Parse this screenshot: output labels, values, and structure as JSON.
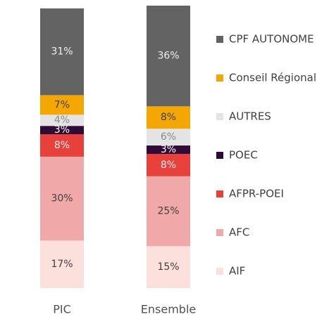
{
  "chart_data": {
    "type": "stacked_bar",
    "categories": [
      "PIC",
      "Ensemble"
    ],
    "series": [
      {
        "name": "CPF AUTONOME",
        "color": "#636363",
        "values": [
          31,
          36
        ],
        "value_labels": [
          "31%",
          "36%"
        ]
      },
      {
        "name": "Conseil Régional",
        "color": "#f4a700",
        "values": [
          7,
          8
        ],
        "value_labels": [
          "7%",
          "8%"
        ]
      },
      {
        "name": "AUTRES",
        "color": "#e4e4e4",
        "values": [
          4,
          6
        ],
        "value_labels": [
          "4%",
          "6%"
        ]
      },
      {
        "name": "POEC",
        "color": "#2f0b36",
        "values": [
          3,
          3
        ],
        "value_labels": [
          "3%",
          "3%"
        ]
      },
      {
        "name": "AFPR-POEI",
        "color": "#e8413c",
        "values": [
          8,
          8
        ],
        "value_labels": [
          "8%",
          "8%"
        ]
      },
      {
        "name": "AFC",
        "color": "#f0a9a8",
        "values": [
          30,
          25
        ],
        "value_labels": [
          "30%",
          "25%"
        ]
      },
      {
        "name": "AIF",
        "color": "#fce0db",
        "values": [
          17,
          15
        ],
        "value_labels": [
          "17%",
          "15%"
        ]
      }
    ],
    "ylim": [
      0,
      100
    ]
  }
}
